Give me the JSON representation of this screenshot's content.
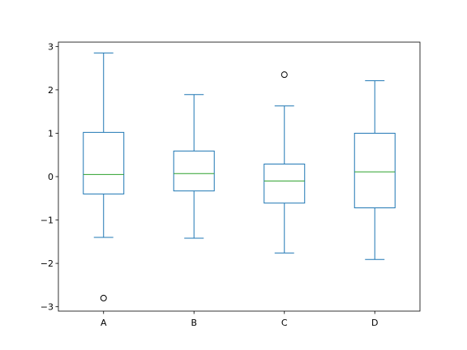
{
  "chart_data": {
    "type": "box",
    "title": "",
    "xlabel": "",
    "ylabel": "",
    "categories": [
      "A",
      "B",
      "C",
      "D"
    ],
    "ylim": [
      -3.1,
      3.1
    ],
    "yticks": [
      -3,
      -2,
      -1,
      0,
      1,
      2,
      3
    ],
    "ytick_labels": [
      "−3",
      "−2",
      "−1",
      "0",
      "1",
      "2",
      "3"
    ],
    "grid": false,
    "boxes": [
      {
        "category": "A",
        "whisker_low": -1.4,
        "q1": -0.4,
        "median": 0.05,
        "q3": 1.02,
        "whisker_high": 2.85,
        "outliers": [
          -2.8
        ]
      },
      {
        "category": "B",
        "whisker_low": -1.42,
        "q1": -0.33,
        "median": 0.07,
        "q3": 0.59,
        "whisker_high": 1.89,
        "outliers": []
      },
      {
        "category": "C",
        "whisker_low": -1.76,
        "q1": -0.61,
        "median": -0.1,
        "q3": 0.29,
        "whisker_high": 1.63,
        "outliers": [
          2.35
        ]
      },
      {
        "category": "D",
        "whisker_low": -1.91,
        "q1": -0.72,
        "median": 0.11,
        "q3": 1.0,
        "whisker_high": 2.21,
        "outliers": []
      }
    ],
    "colors": {
      "box": "#1f77b4",
      "median": "#2ca02c",
      "outlier": "#000000",
      "axes": "#000000"
    }
  }
}
